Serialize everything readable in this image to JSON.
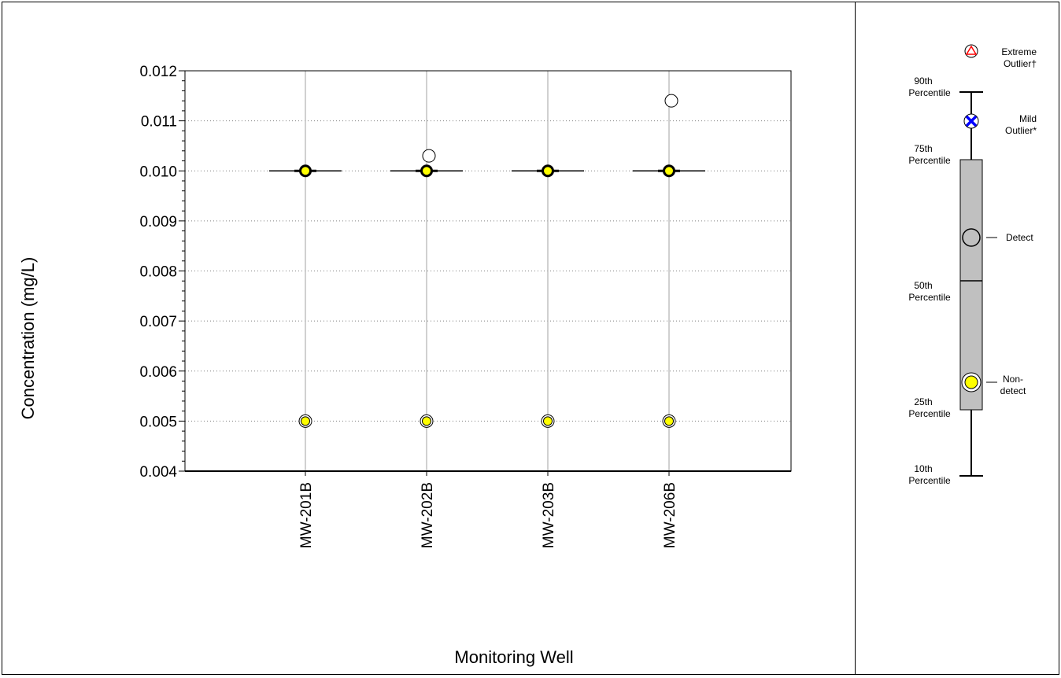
{
  "chart_data": {
    "type": "box",
    "xlabel": "Monitoring Well",
    "ylabel": "Concentration (mg/L)",
    "ylim": [
      0.004,
      0.012
    ],
    "y_ticks": [
      "0.004",
      "0.005",
      "0.006",
      "0.007",
      "0.008",
      "0.009",
      "0.010",
      "0.011",
      "0.012"
    ],
    "y_tick_values": [
      0.004,
      0.005,
      0.006,
      0.007,
      0.008,
      0.009,
      0.01,
      0.011,
      0.012
    ],
    "grid": "dotted horizontal at major ticks, solid vertical at categories",
    "categories": [
      "MW-201B",
      "MW-202B",
      "MW-203B",
      "MW-206B"
    ],
    "wells": [
      {
        "name": "MW-201B",
        "median": 0.01,
        "nondetects": [
          0.01,
          0.005
        ],
        "detects": []
      },
      {
        "name": "MW-202B",
        "median": 0.01,
        "nondetects": [
          0.01,
          0.005
        ],
        "detects": [
          0.0103
        ]
      },
      {
        "name": "MW-203B",
        "median": 0.01,
        "nondetects": [
          0.01,
          0.005
        ],
        "detects": []
      },
      {
        "name": "MW-206B",
        "median": 0.01,
        "nondetects": [
          0.01,
          0.005
        ],
        "detects": [
          0.0114
        ]
      }
    ]
  },
  "legend": {
    "extreme_outlier": [
      "Extreme",
      "Outlier†"
    ],
    "p90": [
      "90th",
      "Percentile"
    ],
    "mild_outlier": [
      "Mild",
      "Outlier*"
    ],
    "p75": [
      "75th",
      "Percentile"
    ],
    "detect": "Detect",
    "p50": [
      "50th",
      "Percentile"
    ],
    "nondetect": [
      "Non-",
      "detect"
    ],
    "p25": [
      "25th",
      "Percentile"
    ],
    "p10": [
      "10th",
      "Percentile"
    ]
  },
  "colors": {
    "nondetect_fill": "#ffff00",
    "box_fill": "#c0c0c0",
    "mild_outlier": "#0000ff",
    "extreme_outlier": "#ff0000",
    "grid": "#c0c0c0"
  }
}
